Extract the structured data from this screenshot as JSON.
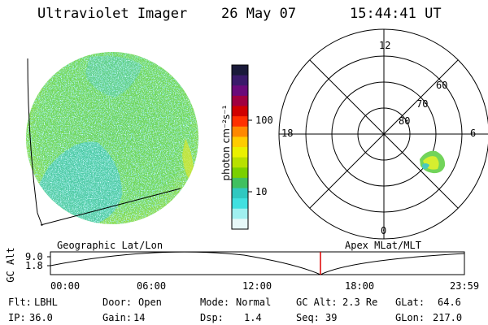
{
  "header": {
    "title": "Ultraviolet Imager",
    "date": "26 May 07",
    "time": "15:44:41 UT"
  },
  "colorbar": {
    "label": "photon cm⁻²s⁻¹",
    "ticks": [
      {
        "value": 100,
        "label": "100"
      },
      {
        "value": 10,
        "label": "10"
      }
    ],
    "colors": [
      "#1a1a3a",
      "#3a1a6a",
      "#6a0a7a",
      "#a00040",
      "#d00000",
      "#ff3000",
      "#ff8800",
      "#ffcc00",
      "#eaf000",
      "#b8e000",
      "#7ad000",
      "#40c060",
      "#30c8c0",
      "#40e0e0",
      "#a0f0f0",
      "#e8f8f8"
    ]
  },
  "polar": {
    "labels": {
      "top": "12",
      "bottom": "0",
      "left": "18",
      "right": "6",
      "lat60": "60",
      "lat70": "70",
      "lat80": "80"
    }
  },
  "panel_labels": {
    "left": "Geographic Lat/Lon",
    "right": "Apex MLat/MLT"
  },
  "orbit_plot": {
    "ylabel": "GC Alt",
    "yticks": [
      "9.0",
      "1.8"
    ],
    "xticks": [
      "00:00",
      "06:00",
      "12:00",
      "18:00",
      "23:59"
    ],
    "current_time": "15:44"
  },
  "info": {
    "row1": [
      {
        "label": "Flt:",
        "value": "LBHL"
      },
      {
        "label": "Door:",
        "value": "Open"
      },
      {
        "label": "Mode:",
        "value": "Normal"
      },
      {
        "label": "GC Alt:",
        "value": "2.3 Re"
      },
      {
        "label": "GLat:",
        "value": "64.6"
      }
    ],
    "row2": [
      {
        "label": "IP:",
        "value": "36.0"
      },
      {
        "label": "Gain:",
        "value": "14"
      },
      {
        "label": "Dsp:",
        "value": "1.4"
      },
      {
        "label": "Seq:",
        "value": "39"
      },
      {
        "label": "GLon:",
        "value": "217.0"
      }
    ]
  }
}
